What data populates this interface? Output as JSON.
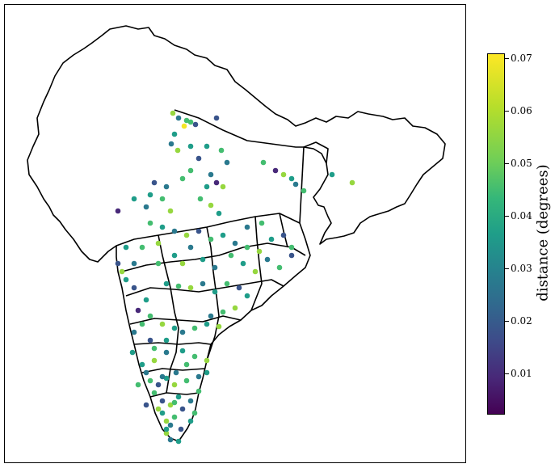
{
  "colorbar": {
    "label": "distance (degrees)",
    "min": 0.002,
    "max": 0.071,
    "ticks": [
      "0.01",
      "0.02",
      "0.03",
      "0.04",
      "0.05",
      "0.06",
      "0.07"
    ],
    "colors": [
      "#440154",
      "#482878",
      "#3e4a89",
      "#31688e",
      "#26828e",
      "#1f9e89",
      "#35b779",
      "#6ece58",
      "#b5de2b",
      "#fde725"
    ]
  },
  "station_values": [
    0.06,
    0.03,
    0.05,
    0.02,
    0.04,
    0.07,
    0.05,
    0.03,
    0.06,
    0.04,
    0.02,
    0.05,
    0.03,
    0.01,
    0.04,
    0.06,
    0.05,
    0.03,
    0.02,
    0.04,
    0.05,
    0.06,
    0.03,
    0.04,
    0.01,
    0.05,
    0.04,
    0.03,
    0.06,
    0.02,
    0.05,
    0.04,
    0.03,
    0.05,
    0.06,
    0.04,
    0.02,
    0.05,
    0.03,
    0.04,
    0.06,
    0.05,
    0.04,
    0.03,
    0.02,
    0.05,
    0.06,
    0.04,
    0.03,
    0.05,
    0.04,
    0.06,
    0.03,
    0.05,
    0.02,
    0.04,
    0.05,
    0.06,
    0.03,
    0.04,
    0.05,
    0.02,
    0.04,
    0.06,
    0.05,
    0.03,
    0.04,
    0.01,
    0.05,
    0.06,
    0.04,
    0.03,
    0.05,
    0.04,
    0.06,
    0.02,
    0.05,
    0.03,
    0.04,
    0.05,
    0.06,
    0.04,
    0.03,
    0.05,
    0.02,
    0.04,
    0.06,
    0.05,
    0.03,
    0.04,
    0.05,
    0.02,
    0.06,
    0.04,
    0.03,
    0.05,
    0.04,
    0.06,
    0.03,
    0.05,
    0.02,
    0.04,
    0.05,
    0.06,
    0.03,
    0.04,
    0.05,
    0.01,
    0.06,
    0.04,
    0.03,
    0.05,
    0.04,
    0.06,
    0.02,
    0.05,
    0.03,
    0.04,
    0.05,
    0.06,
    0.04,
    0.03,
    0.05,
    0.02,
    0.04,
    0.06,
    0.05,
    0.03,
    0.04,
    0.05,
    0.02,
    0.06,
    0.04,
    0.03,
    0.05,
    0.04,
    0.06,
    0.03,
    0.05,
    0.02
  ]
}
